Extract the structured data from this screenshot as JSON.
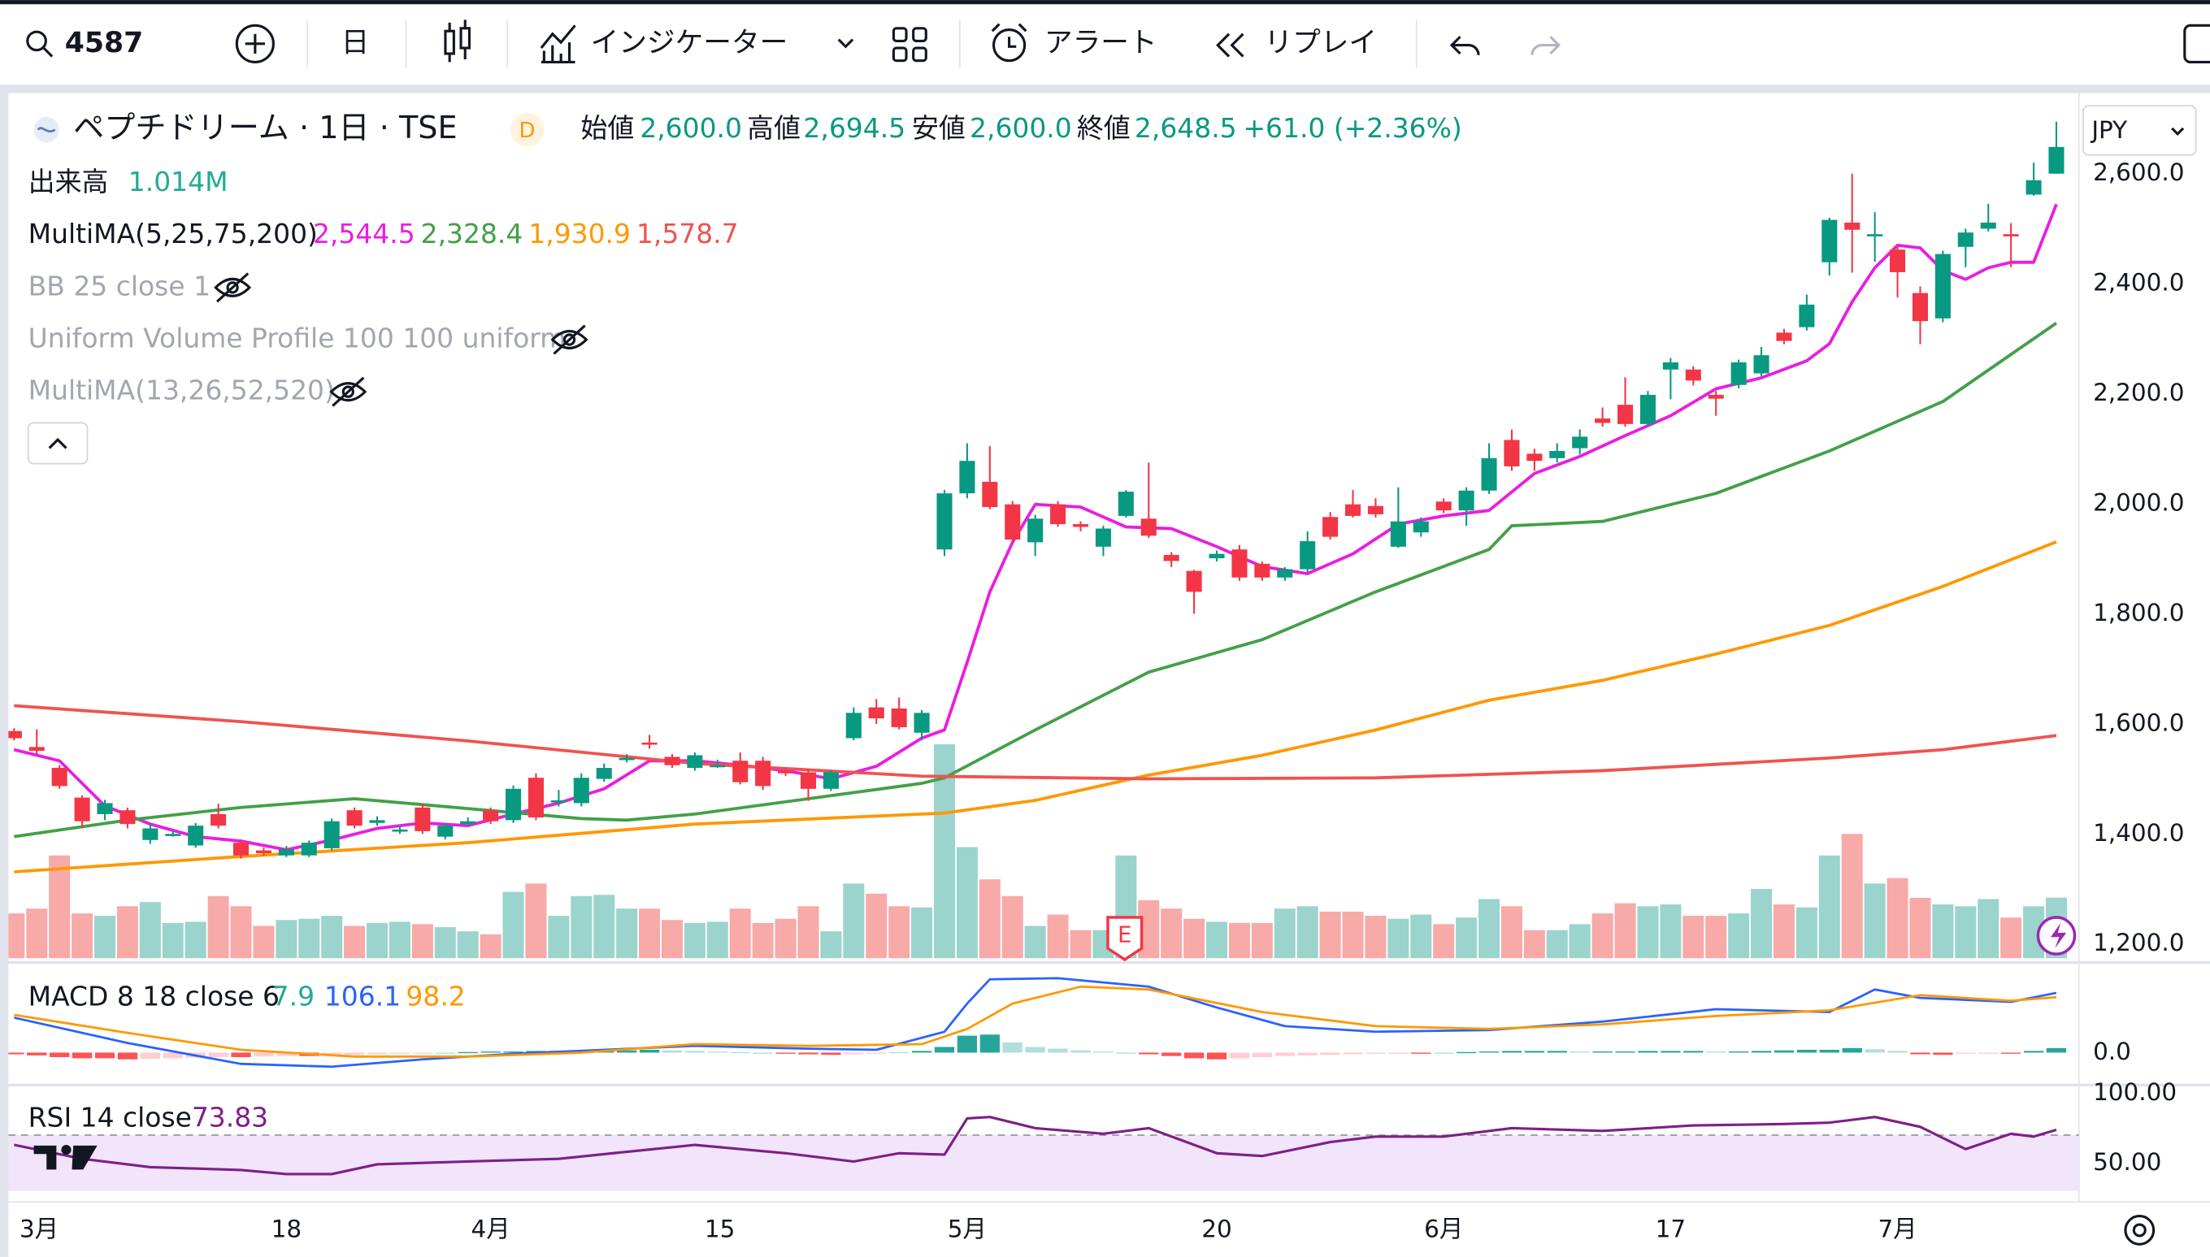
{
  "toolbar": {
    "symbol": "4587",
    "interval": "日",
    "indicators": "インジケーター",
    "alert": "アラート",
    "replay": "リプレイ"
  },
  "legend": {
    "title": "ペプチドリーム · 1日 · TSE",
    "badge": "D",
    "ohlc": [
      {
        "label": "始値",
        "value": "2,600.0"
      },
      {
        "label": "高値",
        "value": "2,694.5"
      },
      {
        "label": "安値",
        "value": "2,600.0"
      },
      {
        "label": "終値",
        "value": "2,648.5"
      }
    ],
    "change": "+61.0 (+2.36%)",
    "volume": {
      "label": "出来高",
      "value": "1.014M"
    },
    "multima": {
      "name": "MultiMA(5,25,75,200)",
      "values": [
        "2,544.5",
        "2,328.4",
        "1,930.9",
        "1,578.7"
      ]
    },
    "hidden": [
      "BB 25 close 1",
      "Uniform Volume Profile 100 100 uniform",
      "MultiMA(13,26,52,520)"
    ],
    "macd": {
      "name": "MACD 8 18 close 6",
      "values": [
        "7.9",
        "106.1",
        "98.2"
      ],
      "colors": [
        "#22ab94",
        "#2962ff",
        "#ff9800"
      ]
    },
    "rsi": {
      "name": "RSI 14 close",
      "values": [
        "73.83"
      ],
      "colors": [
        "#7e1f86"
      ]
    }
  },
  "currency": "JPY",
  "earnings_marker": "E",
  "chart_data": [
    {
      "type": "candlestick",
      "up_color": "#089981",
      "down_color": "#f23645",
      "volume_up_color": "#9ad4cd",
      "volume_down_color": "#f7aaa8",
      "open": [
        1587,
        1558,
        1520,
        1466,
        1436,
        1443,
        1389,
        1398,
        1379,
        1436,
        1384,
        1370,
        1361,
        1361,
        1374,
        1443,
        1420,
        1405,
        1448,
        1395,
        1418,
        1443,
        1425,
        1502,
        1458,
        1456,
        1500,
        1535,
        1566,
        1540,
        1520,
        1523,
        1533,
        1533,
        1514,
        1512,
        1482,
        1574,
        1630,
        1628,
        1584,
        1917,
        2019,
        2040,
        1999,
        1930,
        1999,
        1963,
        1922,
        1978,
        1973,
        1907,
        1878,
        1901,
        1917,
        1891,
        1866,
        1881,
        1976,
        1999,
        1996,
        1922,
        1948,
        2004,
        1988,
        2024,
        2116,
        2091,
        2083,
        2101,
        2155,
        2180,
        2145,
        2244,
        2244,
        2198,
        2216,
        2237,
        2311,
        2321,
        2439,
        2511,
        2486,
        2462,
        2383,
        2337,
        2467,
        2500,
        2490,
        2562,
        2600
      ],
      "high": [
        1592,
        1590,
        1525,
        1470,
        1462,
        1448,
        1418,
        1405,
        1420,
        1455,
        1390,
        1375,
        1378,
        1388,
        1428,
        1448,
        1432,
        1415,
        1455,
        1420,
        1430,
        1448,
        1488,
        1510,
        1480,
        1510,
        1528,
        1545,
        1580,
        1545,
        1548,
        1535,
        1548,
        1540,
        1520,
        1518,
        1516,
        1630,
        1645,
        1648,
        1625,
        2025,
        2110,
        2105,
        2005,
        1980,
        2005,
        1968,
        1960,
        2025,
        2075,
        1912,
        1880,
        1915,
        1925,
        1895,
        1885,
        1950,
        1985,
        2025,
        2010,
        2030,
        1975,
        2010,
        2030,
        2110,
        2135,
        2100,
        2110,
        2135,
        2175,
        2230,
        2205,
        2265,
        2250,
        2205,
        2262,
        2285,
        2318,
        2380,
        2520,
        2600,
        2530,
        2470,
        2395,
        2460,
        2500,
        2545,
        2510,
        2620,
        2694.5
      ],
      "low": [
        1570,
        1545,
        1482,
        1410,
        1425,
        1410,
        1382,
        1395,
        1375,
        1410,
        1355,
        1360,
        1358,
        1358,
        1370,
        1410,
        1415,
        1400,
        1400,
        1390,
        1415,
        1418,
        1420,
        1425,
        1450,
        1450,
        1495,
        1530,
        1555,
        1520,
        1515,
        1520,
        1490,
        1480,
        1505,
        1460,
        1478,
        1570,
        1600,
        1590,
        1570,
        1905,
        2010,
        1990,
        1930,
        1905,
        1958,
        1950,
        1905,
        1975,
        1938,
        1885,
        1800,
        1895,
        1860,
        1860,
        1860,
        1875,
        1935,
        1975,
        1975,
        1920,
        1940,
        1983,
        1960,
        2018,
        2060,
        2060,
        2075,
        2090,
        2140,
        2140,
        2140,
        2190,
        2215,
        2160,
        2210,
        2232,
        2290,
        2315,
        2415,
        2420,
        2440,
        2375,
        2290,
        2330,
        2430,
        2495,
        2430,
        2560,
        2600
      ],
      "close": [
        1574,
        1551,
        1487,
        1423,
        1456,
        1418,
        1410,
        1400,
        1415,
        1415,
        1361,
        1365,
        1372,
        1384,
        1423,
        1415,
        1425,
        1408,
        1405,
        1415,
        1423,
        1423,
        1482,
        1430,
        1461,
        1502,
        1520,
        1538,
        1564,
        1525,
        1543,
        1525,
        1494,
        1487,
        1512,
        1482,
        1512,
        1620,
        1610,
        1594,
        1620,
        2019,
        2078,
        1994,
        1935,
        1973,
        1963,
        1958,
        1955,
        2022,
        1942,
        1896,
        1840,
        1909,
        1866,
        1866,
        1881,
        1932,
        1940,
        1978,
        1981,
        1968,
        1968,
        1988,
        2024,
        2083,
        2068,
        2078,
        2096,
        2122,
        2147,
        2145,
        2198,
        2257,
        2224,
        2191,
        2257,
        2270,
        2296,
        2362,
        2516,
        2498,
        2490,
        2421,
        2332,
        2454,
        2493,
        2511,
        2486,
        2588,
        2648.5
      ],
      "volume": [
        0.75,
        0.83,
        1.72,
        0.75,
        0.71,
        0.87,
        0.94,
        0.59,
        0.61,
        1.04,
        0.87,
        0.54,
        0.64,
        0.66,
        0.71,
        0.54,
        0.59,
        0.61,
        0.57,
        0.52,
        0.45,
        0.4,
        1.11,
        1.25,
        0.71,
        1.04,
        1.06,
        0.83,
        0.83,
        0.64,
        0.59,
        0.61,
        0.83,
        0.59,
        0.66,
        0.87,
        0.45,
        1.25,
        1.08,
        0.87,
        0.85,
        3.58,
        1.86,
        1.32,
        1.04,
        0.54,
        0.73,
        0.47,
        0.47,
        1.72,
        0.97,
        0.83,
        0.66,
        0.61,
        0.59,
        0.59,
        0.83,
        0.87,
        0.78,
        0.78,
        0.71,
        0.66,
        0.73,
        0.57,
        0.68,
        0.99,
        0.87,
        0.47,
        0.47,
        0.57,
        0.75,
        0.92,
        0.87,
        0.9,
        0.71,
        0.71,
        0.75,
        1.16,
        0.9,
        0.85,
        1.72,
        2.08,
        1.25,
        1.34,
        1.01,
        0.9,
        0.87,
        0.99,
        0.68,
        0.87,
        1.014
      ],
      "lines": [
        {
          "color": "#e91ee0",
          "x": [
            0,
            2,
            4,
            6,
            8,
            10,
            12,
            14,
            16,
            18,
            20,
            22,
            24,
            26,
            28,
            30,
            32,
            34,
            36,
            38,
            40,
            41,
            42,
            43,
            44,
            45,
            47,
            49,
            51,
            53,
            55,
            57,
            59,
            61,
            63,
            65,
            67,
            69,
            71,
            73,
            75,
            77,
            79,
            80,
            81,
            82,
            83,
            84,
            85,
            86,
            87,
            88,
            89,
            90
          ],
          "values": [
            1553,
            1533,
            1451,
            1418,
            1395,
            1387,
            1371,
            1389,
            1410,
            1420,
            1415,
            1436,
            1456,
            1482,
            1533,
            1533,
            1525,
            1515,
            1500,
            1523,
            1574,
            1589,
            1712,
            1840,
            1930,
            1999,
            1994,
            1958,
            1955,
            1922,
            1886,
            1873,
            1909,
            1963,
            1978,
            1988,
            2055,
            2086,
            2124,
            2160,
            2209,
            2229,
            2260,
            2291,
            2367,
            2429,
            2470,
            2465,
            2424,
            2408,
            2429,
            2439,
            2439,
            2544.5
          ]
        },
        {
          "color": "#43a047",
          "x": [
            0,
            5,
            10,
            15,
            20,
            25,
            27,
            30,
            35,
            40,
            41,
            45,
            50,
            55,
            60,
            65,
            66,
            70,
            75,
            80,
            85,
            90
          ],
          "values": [
            1395,
            1425,
            1448,
            1464,
            1446,
            1428,
            1425,
            1436,
            1464,
            1492,
            1502,
            1589,
            1694,
            1753,
            1840,
            1917,
            1960,
            1968,
            2019,
            2096,
            2186,
            2328.4
          ]
        },
        {
          "color": "#ff9800",
          "x": [
            0,
            10,
            20,
            30,
            40,
            41,
            45,
            50,
            55,
            60,
            65,
            70,
            75,
            80,
            85,
            90
          ],
          "values": [
            1331,
            1359,
            1384,
            1418,
            1436,
            1438,
            1461,
            1507,
            1543,
            1589,
            1643,
            1679,
            1727,
            1779,
            1850,
            1930.9
          ]
        },
        {
          "color": "#ef5350",
          "x": [
            0,
            10,
            20,
            30,
            40,
            50,
            60,
            70,
            80,
            85,
            90
          ],
          "values": [
            1633,
            1604,
            1569,
            1528,
            1505,
            1500,
            1502,
            1515,
            1538,
            1553,
            1578.7
          ]
        }
      ],
      "ylim": [
        1169,
        2749
      ],
      "yticks": [
        {
          "value": 1200,
          "label": "1,200.0"
        },
        {
          "value": 1400,
          "label": "1,400.0"
        },
        {
          "value": 1600,
          "label": "1,600.0"
        },
        {
          "value": 1800,
          "label": "1,800.0"
        },
        {
          "value": 2000,
          "label": "2,000.0"
        },
        {
          "value": 2200,
          "label": "2,200.0"
        },
        {
          "value": 2400,
          "label": "2,400.0"
        },
        {
          "value": 2600,
          "label": "2,600.0"
        }
      ],
      "xticks": [
        {
          "value": 1.1,
          "label": "3月"
        },
        {
          "value": 12,
          "label": "18"
        },
        {
          "value": 21,
          "label": "4月"
        },
        {
          "value": 31.1,
          "label": "15"
        },
        {
          "value": 42,
          "label": "5月"
        },
        {
          "value": 53,
          "label": "20"
        },
        {
          "value": 63,
          "label": "6月"
        },
        {
          "value": 73,
          "label": "17"
        },
        {
          "value": 83,
          "label": "7月"
        }
      ],
      "grid": false
    },
    {
      "type": "macd",
      "histogram": [
        -3,
        -5,
        -8,
        -10,
        -10,
        -12,
        -11,
        -10,
        -9,
        -8,
        -8,
        -7,
        -6,
        -6,
        -5,
        -4,
        -3,
        -2,
        -1,
        0,
        1,
        2,
        2,
        3,
        3,
        4,
        4,
        4,
        5,
        4,
        3,
        2,
        1,
        0,
        -2,
        -3,
        -4,
        -3,
        -2,
        1,
        3,
        10,
        30,
        32,
        18,
        10,
        7,
        4,
        2,
        0,
        -3,
        -6,
        -10,
        -12,
        -10,
        -8,
        -6,
        -5,
        -4,
        -3,
        -2,
        -1,
        -1,
        0,
        1,
        2,
        3,
        3,
        3,
        2,
        2,
        2,
        3,
        3,
        3,
        2,
        2,
        3,
        4,
        5,
        5,
        8,
        6,
        3,
        -3,
        -4,
        -2,
        -1,
        -1,
        3,
        7.9
      ],
      "hist_colors": [
        "#26a69a",
        "#b2dfdb",
        "#ff5252",
        "#ffcdd2"
      ],
      "lines": [
        {
          "color": "#2962ff",
          "x": [
            0,
            5,
            10,
            14,
            18,
            22,
            26,
            30,
            35,
            38,
            41,
            42,
            43,
            46,
            50,
            53,
            56,
            60,
            65,
            70,
            75,
            80,
            82,
            84,
            88,
            90
          ],
          "values": [
            62,
            17,
            -20,
            -25,
            -12,
            -2,
            5,
            12,
            7,
            5,
            37,
            87,
            130,
            132,
            117,
            80,
            47,
            37,
            40,
            55,
            77,
            72,
            112,
            97,
            90,
            106.1
          ]
        },
        {
          "color": "#ff9800",
          "x": [
            0,
            5,
            10,
            15,
            20,
            25,
            30,
            35,
            40,
            42,
            44,
            47,
            50,
            55,
            60,
            65,
            70,
            75,
            80,
            84,
            88,
            90
          ],
          "values": [
            67,
            35,
            5,
            -7,
            -7,
            0,
            15,
            12,
            15,
            42,
            87,
            117,
            112,
            72,
            47,
            42,
            50,
            65,
            75,
            102,
            92,
            98.2
          ]
        }
      ],
      "ylim": [
        -55,
        157.5
      ],
      "yticks": [
        {
          "value": 0,
          "label": "0.0"
        }
      ]
    },
    {
      "type": "rsi",
      "lines": [
        {
          "color": "#7e1f86",
          "x": [
            0,
            3,
            6,
            10,
            12,
            14,
            16,
            20,
            24,
            27,
            30,
            34,
            37,
            39,
            41,
            42,
            43,
            45,
            48,
            50,
            53,
            55,
            58,
            60,
            63,
            66,
            70,
            74,
            78,
            80,
            82,
            84,
            86,
            88,
            89,
            90
          ],
          "values": [
            63,
            53,
            47,
            45,
            42,
            42,
            49,
            51,
            53,
            58,
            63,
            57,
            51,
            57,
            56,
            82,
            83,
            75,
            71,
            75,
            57,
            55,
            65,
            69,
            69,
            75,
            73,
            77,
            78,
            79,
            83,
            76,
            60,
            71,
            69,
            73.83
          ]
        }
      ],
      "band": [
        30,
        70
      ],
      "band_color": "#f1e4fb",
      "ylim": [
        22,
        105
      ],
      "yticks": [
        {
          "value": 100,
          "label": "100.00"
        },
        {
          "value": 50,
          "label": "50.00"
        }
      ]
    }
  ]
}
